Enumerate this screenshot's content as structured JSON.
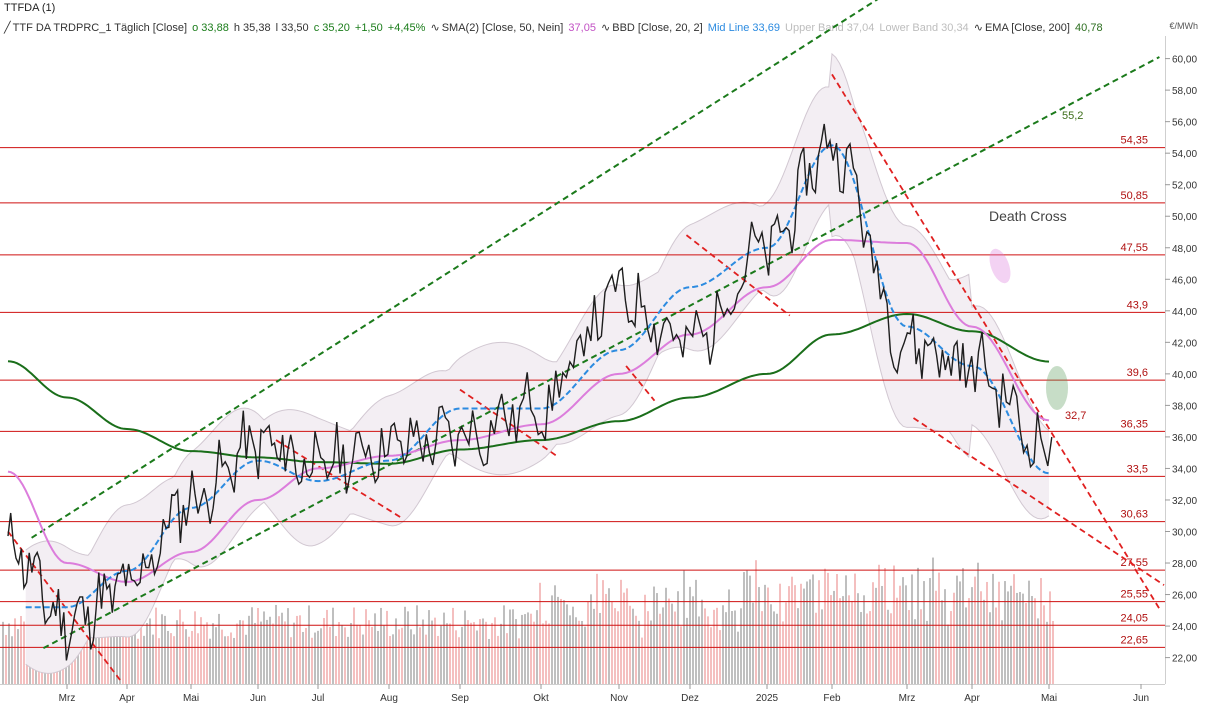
{
  "window": {
    "title": "TTFDA (1)"
  },
  "legend": {
    "symbol": "TTF DA TRDPRC_1 Täglich [Close]",
    "open": "o 33,88",
    "high": "h 35,38",
    "low": "l 33,50",
    "close": "c 35,20",
    "change": "+1,50",
    "change_pct": "+4,45%",
    "sma_label": "SMA(2) [Close, 50, Nein]",
    "sma_value": "37,05",
    "bbd_label": "BBD [Close, 20, 2]",
    "mid_label": "Mid Line 33,69",
    "upper_label": "Upper Band 37,04",
    "lower_label": "Lower Band 30,34",
    "ema_label": "EMA [Close, 200]",
    "ema_value": "40,78"
  },
  "unit": "€/MWh",
  "colors": {
    "price": "#1e1e1e",
    "sma": "#dc7ddc",
    "mid": "#2c8be0",
    "band_fill": "#f3eef3",
    "band_line": "#d2c8d2",
    "ema": "#1a6e1a",
    "hline": "#cf1010",
    "trend_red": "#e02020",
    "channel": "#1b7a1b",
    "vol_grey": "#a9a9a9",
    "vol_pink": "#f0aaaa"
  },
  "annotations": {
    "death_cross": "Death Cross",
    "channel_value": "55,2",
    "last_value": "32,7"
  },
  "chart_data": {
    "type": "line",
    "title": "TTF DA TRDPRC_1 Täglich",
    "ylabel": "€/MWh",
    "ylim": [
      20.8,
      61.5
    ],
    "y_ticks": [
      "22,00",
      "24,00",
      "26,00",
      "28,00",
      "30,00",
      "32,00",
      "34,00",
      "36,00",
      "38,00",
      "40,00",
      "42,00",
      "44,00",
      "46,00",
      "48,00",
      "50,00",
      "52,00",
      "54,00",
      "56,00",
      "58,00",
      "60,00"
    ],
    "x_ticks": [
      "Mrz",
      "Apr",
      "Mai",
      "Jun",
      "Jul",
      "Aug",
      "Sep",
      "Okt",
      "Nov",
      "Dez",
      "2025",
      "Feb",
      "Mrz",
      "Apr",
      "Mai",
      "Jun"
    ],
    "horizontal_levels": [
      {
        "value": 54.35,
        "label": "54,35"
      },
      {
        "value": 50.85,
        "label": "50,85"
      },
      {
        "value": 47.55,
        "label": "47,55"
      },
      {
        "value": 43.9,
        "label": "43,9"
      },
      {
        "value": 39.6,
        "label": "39,6"
      },
      {
        "value": 36.35,
        "label": "36,35"
      },
      {
        "value": 33.5,
        "label": "33,5"
      },
      {
        "value": 30.63,
        "label": "30,63"
      },
      {
        "value": 27.55,
        "label": "27,55"
      },
      {
        "value": 25.55,
        "label": "25,55"
      },
      {
        "value": 24.05,
        "label": "24,05"
      },
      {
        "value": 22.65,
        "label": "22,65"
      }
    ],
    "series": [
      {
        "name": "TTF DA TRDPRC_1 Täglich [Close]",
        "x": [
          "Feb",
          "Mrz",
          "Apr",
          "Mai",
          "Jun",
          "Jul",
          "Aug",
          "Sep",
          "Okt",
          "Nov",
          "Dez",
          "2025",
          "Feb",
          "Mrz",
          "Apr",
          "Mai"
        ],
        "values": [
          29.2,
          24.2,
          26.5,
          32.0,
          35.5,
          34.2,
          35.5,
          36.0,
          38.0,
          45.0,
          42.0,
          48.0,
          54.5,
          42.0,
          40.5,
          35.2
        ]
      },
      {
        "name": "SMA(2) [Close, 50, Nein]",
        "x": [
          "Feb",
          "Mrz",
          "Apr",
          "Mai",
          "Jun",
          "Jul",
          "Aug",
          "Sep",
          "Okt",
          "Nov",
          "Dez",
          "2025",
          "Feb",
          "Mrz",
          "Apr",
          "Mai"
        ],
        "values": [
          33.8,
          28.0,
          26.8,
          28.7,
          32.0,
          34.0,
          34.8,
          35.8,
          36.8,
          40.0,
          42.5,
          45.5,
          48.5,
          48.3,
          43.0,
          37.05
        ]
      },
      {
        "name": "Mid Line",
        "x": [
          "Mrz",
          "Apr",
          "Mai",
          "Jun",
          "Jul",
          "Aug",
          "Sep",
          "Okt",
          "Nov",
          "Dez",
          "2025",
          "Feb",
          "Mrz",
          "Apr",
          "Mai"
        ],
        "values": [
          25.2,
          27.5,
          31.5,
          34.5,
          33.2,
          34.5,
          37.8,
          37.8,
          41.5,
          45.5,
          48.0,
          54.5,
          43.0,
          40.5,
          33.69
        ]
      },
      {
        "name": "EMA [Close, 200]",
        "x": [
          "Feb",
          "Mrz",
          "Apr",
          "Mai",
          "Jun",
          "Jul",
          "Aug",
          "Sep",
          "Okt",
          "Nov",
          "Dez",
          "2025",
          "Feb",
          "Mrz",
          "Apr",
          "Mai"
        ],
        "values": [
          40.8,
          38.5,
          36.5,
          35.1,
          34.7,
          34.4,
          34.3,
          35.2,
          35.8,
          37.0,
          38.5,
          40.0,
          42.5,
          43.8,
          42.7,
          40.78
        ]
      }
    ],
    "bands": {
      "upper_label": "Upper Band 37,04",
      "lower_label": "Lower Band 30,34"
    },
    "grid": false,
    "legend_position": "top-left"
  }
}
